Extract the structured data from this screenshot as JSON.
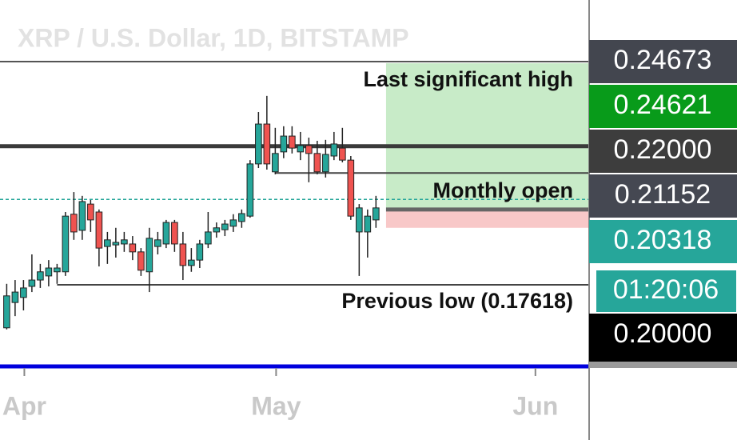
{
  "chart_data": {
    "type": "candlestick",
    "title": "XRP / U.S. Dollar, 1D, BITSTAMP",
    "up_color": "#26a69a",
    "down_color": "#ef5350",
    "open": [
      0.1626,
      0.1706,
      0.1722,
      0.1757,
      0.1777,
      0.179,
      0.1803,
      0.1803,
      0.1985,
      0.1934,
      0.2017,
      0.1992,
      0.1883,
      0.1888,
      0.1891,
      0.1891,
      0.1866,
      0.1803,
      0.1883,
      0.1891,
      0.1959,
      0.1891,
      0.1823,
      0.184,
      0.1891,
      0.1929,
      0.1936,
      0.1947,
      0.1962,
      0.1979,
      0.2144,
      0.227,
      0.2119,
      0.2182,
      0.2232,
      0.2182,
      0.2202,
      0.2177,
      0.2119,
      0.2169,
      0.2194,
      0.2156,
      0.1929,
      0.1929,
      0.1967
    ],
    "high": [
      0.1765,
      0.1777,
      0.1777,
      0.1858,
      0.1828,
      0.184,
      0.1828,
      0.1992,
      0.2055,
      0.2043,
      0.203,
      0.2,
      0.1929,
      0.1942,
      0.1929,
      0.1916,
      0.1878,
      0.1942,
      0.1929,
      0.1967,
      0.1967,
      0.1929,
      0.1878,
      0.1904,
      0.1992,
      0.1959,
      0.1967,
      0.1985,
      0.2,
      0.2156,
      0.2308,
      0.2359,
      0.2258,
      0.2263,
      0.2263,
      0.2245,
      0.2227,
      0.2217,
      0.222,
      0.2245,
      0.2258,
      0.2169,
      0.2017,
      0.2,
      0.2043
    ],
    "low": [
      0.1621,
      0.1663,
      0.1681,
      0.1739,
      0.1752,
      0.1757,
      0.1765,
      0.179,
      0.1904,
      0.1904,
      0.1929,
      0.182,
      0.1828,
      0.1848,
      0.1866,
      0.184,
      0.179,
      0.1739,
      0.1858,
      0.1878,
      0.1866,
      0.1777,
      0.1803,
      0.1815,
      0.1878,
      0.1911,
      0.1916,
      0.1929,
      0.1942,
      0.1974,
      0.2131,
      0.2126,
      0.2111,
      0.2162,
      0.2177,
      0.2156,
      0.2086,
      0.2111,
      0.2101,
      0.2156,
      0.2149,
      0.1967,
      0.179,
      0.1848,
      0.1942
    ],
    "close": [
      0.1727,
      0.1739,
      0.1752,
      0.1777,
      0.1803,
      0.1815,
      0.1815,
      0.1979,
      0.1929,
      0.2025,
      0.1967,
      0.1878,
      0.1904,
      0.1896,
      0.1904,
      0.1866,
      0.1808,
      0.1909,
      0.1904,
      0.1959,
      0.1891,
      0.1823,
      0.184,
      0.1891,
      0.1929,
      0.1942,
      0.1954,
      0.1967,
      0.1987,
      0.2144,
      0.227,
      0.2144,
      0.2177,
      0.2232,
      0.2194,
      0.2202,
      0.2177,
      0.2119,
      0.2174,
      0.2207,
      0.2156,
      0.1979,
      0.2005,
      0.1979,
      0.2005
    ],
    "xlim": [
      -0.8,
      69.4
    ],
    "xticks": [
      {
        "value": 2.1,
        "label": "Apr"
      },
      {
        "value": 32.1,
        "label": "May"
      },
      {
        "value": 63,
        "label": "Jun"
      }
    ],
    "ylim": [
      0.1499,
      0.2662
    ],
    "position": {
      "target": 0.24621,
      "entry": 0.2,
      "stop": 0.1942,
      "start": 45.2,
      "profit_color": "#c8ebc8",
      "loss_color": "#f8c8c8"
    },
    "levels": [
      {
        "value": 0.24673,
        "label": "0.24673",
        "color": "#555555",
        "width": 2,
        "start": -0.8,
        "tag_color": "#43464f"
      },
      {
        "value": 0.24621,
        "label": "0.24621",
        "tag_color": "#089b1a"
      },
      {
        "value": 0.22,
        "label": "0.22000",
        "color": "#3a3a3a",
        "width": 5,
        "start": -0.8,
        "tag_color": "#3d3d3d"
      },
      {
        "value": 0.21152,
        "label": "0.21152",
        "color": "#444444",
        "width": 2,
        "start": 32,
        "tag_color": "#454852"
      },
      {
        "value": 0.20318,
        "label": "0.20318",
        "color": "#26a69a",
        "width": 1.5,
        "dashed": true,
        "start": -0.8,
        "tag_color": "#26a69a"
      },
      {
        "value": 0.2,
        "label": "0.20000",
        "color": "#666666",
        "width": 5,
        "start": 45.2,
        "tag_color": "#000000"
      },
      {
        "value": 0.17618,
        "color": "#444444",
        "width": 2,
        "start": 6
      },
      {
        "value": 0.1504,
        "color": "#0000dd",
        "width": 5,
        "start": -0.8
      }
    ],
    "countdown": "01:20:06",
    "annotations": [
      "Last significant high",
      "Monthly open",
      "Previous low (0.17618)"
    ]
  }
}
